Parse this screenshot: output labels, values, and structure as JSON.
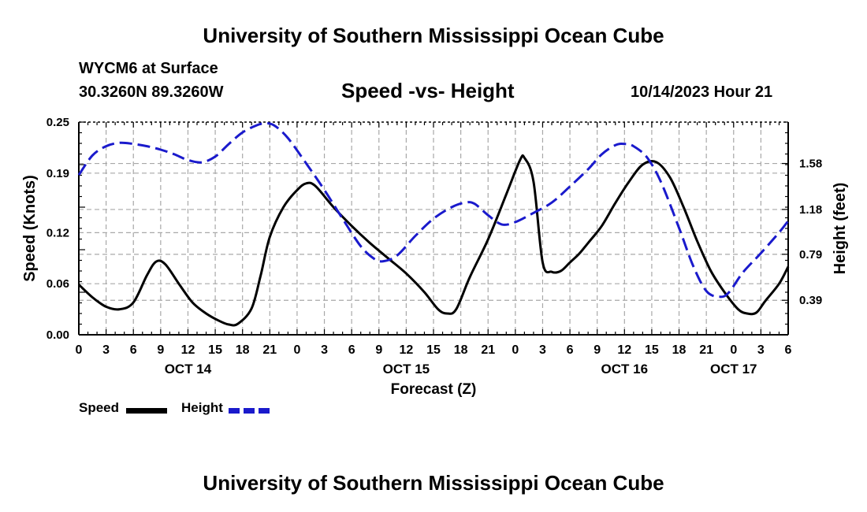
{
  "header": {
    "title": "University of Southern Mississippi Ocean Cube",
    "station": "WYCM6 at Surface",
    "coords": "30.3260N  89.3260W",
    "plot_title": "Speed -vs- Height",
    "timestamp": "10/14/2023 Hour 21"
  },
  "footer": {
    "title": "University of Southern Mississippi Ocean Cube"
  },
  "legend": {
    "speed_label": "Speed",
    "height_label": "Height"
  },
  "colors": {
    "speed": "#000000",
    "height": "#1a1acc",
    "grid": "#a8a8a8"
  },
  "chart_data": {
    "type": "line",
    "title": "Speed -vs- Height",
    "xlabel": "Forecast (Z)",
    "ylabel": "Speed (Knots)",
    "ylabel_right": "Height (feet)",
    "xlim": [
      0,
      78
    ],
    "ylim": [
      0,
      0.25
    ],
    "ylim_right": [
      0.09,
      1.94
    ],
    "grid": true,
    "x_tick_hours": [
      0,
      3,
      6,
      9,
      12,
      15,
      18,
      21,
      24,
      27,
      30,
      33,
      36,
      39,
      42,
      45,
      48,
      51,
      54,
      57,
      60,
      63,
      66,
      69,
      72,
      75,
      78
    ],
    "x_tick_labels": [
      "0",
      "3",
      "6",
      "9",
      "12",
      "15",
      "18",
      "21",
      "0",
      "3",
      "6",
      "9",
      "12",
      "15",
      "18",
      "21",
      "0",
      "3",
      "6",
      "9",
      "12",
      "15",
      "18",
      "21",
      "0",
      "3",
      "6"
    ],
    "day_labels": [
      {
        "hour": 12,
        "label": "OCT 14"
      },
      {
        "hour": 36,
        "label": "OCT 15"
      },
      {
        "hour": 60,
        "label": "OCT 16"
      },
      {
        "hour": 72,
        "label": "OCT 17"
      }
    ],
    "y_ticks": [
      0.0,
      0.06,
      0.12,
      0.19,
      0.25
    ],
    "y_tick_labels": [
      "0.00",
      "0.06",
      "0.12",
      "0.19",
      "0.25"
    ],
    "y_right_ticks": [
      0.39,
      0.79,
      1.18,
      1.58
    ],
    "y_right_tick_labels": [
      "0.39",
      "0.79",
      "1.18",
      "1.58"
    ],
    "series": [
      {
        "name": "Speed",
        "axis": "left",
        "style": "solid",
        "x": [
          0,
          1.5,
          3,
          4.5,
          6,
          7.5,
          8.5,
          9.5,
          11,
          12.5,
          14,
          15.5,
          16.5,
          17.5,
          19,
          20,
          21,
          22.5,
          24,
          25,
          26,
          28,
          30,
          32,
          34,
          36,
          38,
          39.5,
          40.5,
          41.5,
          43,
          45,
          47,
          48.5,
          49,
          50,
          51,
          52,
          53,
          54,
          55,
          56,
          57.5,
          59,
          60.5,
          62,
          63.5,
          65,
          66.5,
          68,
          69.5,
          71,
          72.5,
          73.5,
          74.5,
          75.5,
          77,
          78
        ],
        "values": [
          0.059,
          0.044,
          0.033,
          0.03,
          0.038,
          0.07,
          0.086,
          0.083,
          0.06,
          0.038,
          0.025,
          0.016,
          0.012,
          0.013,
          0.031,
          0.07,
          0.115,
          0.15,
          0.17,
          0.178,
          0.175,
          0.15,
          0.128,
          0.108,
          0.09,
          0.072,
          0.05,
          0.03,
          0.025,
          0.03,
          0.068,
          0.112,
          0.165,
          0.205,
          0.208,
          0.18,
          0.085,
          0.074,
          0.075,
          0.085,
          0.095,
          0.108,
          0.128,
          0.155,
          0.18,
          0.2,
          0.203,
          0.185,
          0.15,
          0.11,
          0.075,
          0.05,
          0.03,
          0.025,
          0.026,
          0.04,
          0.06,
          0.08
        ]
      },
      {
        "name": "Height",
        "axis": "right",
        "style": "dashed",
        "x": [
          0,
          1.5,
          3,
          4.5,
          6,
          7.5,
          9,
          10.5,
          12,
          13.5,
          15,
          16.5,
          18,
          19.5,
          20.5,
          21.5,
          23,
          25,
          27,
          29,
          31,
          32.5,
          33.5,
          35,
          37,
          39,
          41,
          42.5,
          43.5,
          45,
          46.5,
          48,
          50,
          52,
          54,
          56,
          57.5,
          59,
          60,
          61,
          62.5,
          64,
          66,
          67.5,
          69,
          70.5,
          71.5,
          73,
          75,
          77,
          78
        ],
        "values": [
          1.48,
          1.65,
          1.73,
          1.76,
          1.75,
          1.73,
          1.7,
          1.66,
          1.61,
          1.59,
          1.64,
          1.75,
          1.85,
          1.91,
          1.93,
          1.91,
          1.8,
          1.58,
          1.35,
          1.1,
          0.86,
          0.75,
          0.73,
          0.78,
          0.95,
          1.1,
          1.2,
          1.24,
          1.23,
          1.13,
          1.05,
          1.07,
          1.15,
          1.24,
          1.38,
          1.53,
          1.66,
          1.74,
          1.75,
          1.73,
          1.63,
          1.42,
          1.02,
          0.7,
          0.47,
          0.42,
          0.46,
          0.63,
          0.8,
          0.98,
          1.08
        ]
      }
    ]
  }
}
